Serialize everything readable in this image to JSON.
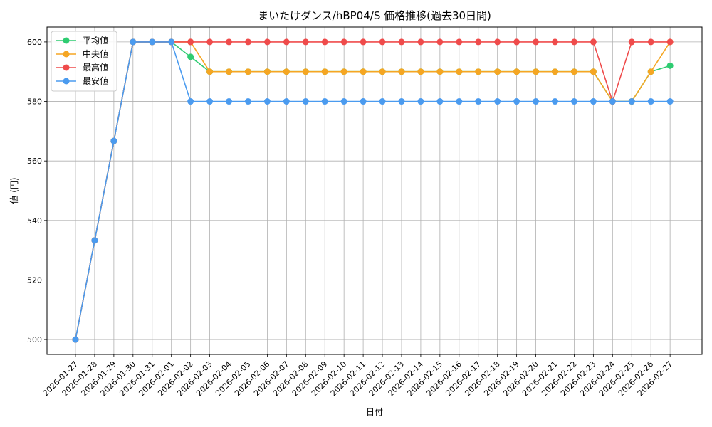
{
  "chart_data": {
    "type": "line",
    "title": "まいたけダンス/hBP04/S 価格推移(過去30日間)",
    "xlabel": "日付",
    "ylabel": "値 (円)",
    "ylim": [
      495,
      605
    ],
    "yticks": [
      500,
      520,
      540,
      560,
      580,
      600
    ],
    "grid": true,
    "legend_position": "top-left",
    "categories": [
      "2026-01-27",
      "2026-01-28",
      "2026-01-29",
      "2026-01-30",
      "2026-01-31",
      "2026-02-01",
      "2026-02-02",
      "2026-02-03",
      "2026-02-04",
      "2026-02-05",
      "2026-02-06",
      "2026-02-07",
      "2026-02-08",
      "2026-02-09",
      "2026-02-10",
      "2026-02-11",
      "2026-02-12",
      "2026-02-13",
      "2026-02-14",
      "2026-02-15",
      "2026-02-16",
      "2026-02-17",
      "2026-02-18",
      "2026-02-19",
      "2026-02-20",
      "2026-02-21",
      "2026-02-22",
      "2026-02-23",
      "2026-02-24",
      "2026-02-25",
      "2026-02-26",
      "2026-02-27"
    ],
    "series": [
      {
        "name": "平均値",
        "color": "#2ecc71",
        "values": [
          500,
          533.3,
          566.7,
          600,
          600,
          600,
          595,
          590,
          590,
          590,
          590,
          590,
          590,
          590,
          590,
          590,
          590,
          590,
          590,
          590,
          590,
          590,
          590,
          590,
          590,
          590,
          590,
          590,
          580,
          580,
          590,
          592
        ]
      },
      {
        "name": "中央値",
        "color": "#f5a623",
        "values": [
          500,
          533.3,
          566.7,
          600,
          600,
          600,
          600,
          590,
          590,
          590,
          590,
          590,
          590,
          590,
          590,
          590,
          590,
          590,
          590,
          590,
          590,
          590,
          590,
          590,
          590,
          590,
          590,
          590,
          580,
          580,
          590,
          600
        ]
      },
      {
        "name": "最高値",
        "color": "#ef4b4b",
        "values": [
          500,
          533.3,
          566.7,
          600,
          600,
          600,
          600,
          600,
          600,
          600,
          600,
          600,
          600,
          600,
          600,
          600,
          600,
          600,
          600,
          600,
          600,
          600,
          600,
          600,
          600,
          600,
          600,
          600,
          580,
          600,
          600,
          600
        ]
      },
      {
        "name": "最安値",
        "color": "#4b9bef",
        "values": [
          500,
          533.3,
          566.7,
          600,
          600,
          600,
          580,
          580,
          580,
          580,
          580,
          580,
          580,
          580,
          580,
          580,
          580,
          580,
          580,
          580,
          580,
          580,
          580,
          580,
          580,
          580,
          580,
          580,
          580,
          580,
          580,
          580
        ]
      }
    ]
  }
}
